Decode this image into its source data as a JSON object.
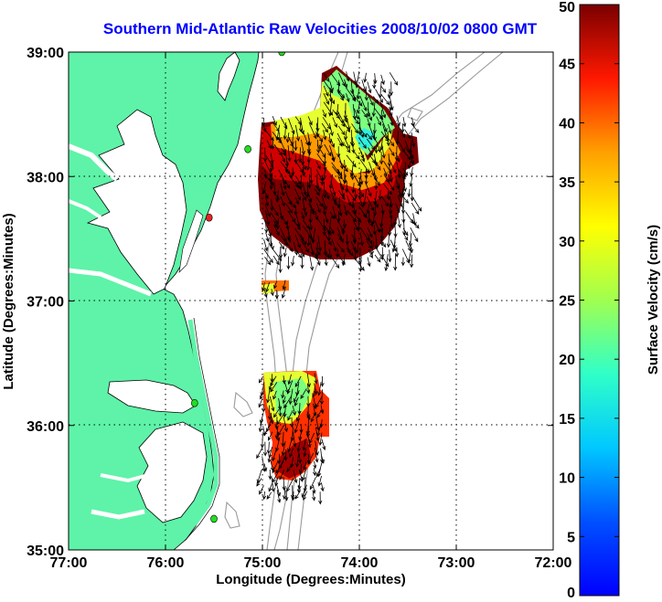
{
  "title": "Southern Mid-Atlantic Raw Velocities 2008/10/02 0800 GMT",
  "map": {
    "xlabel": "Longitude (Degrees:Minutes)",
    "ylabel": "Latitude (Degrees:Minutes)",
    "x_ticks": [
      {
        "value": -77,
        "label": "77:00"
      },
      {
        "value": -76,
        "label": "76:00"
      },
      {
        "value": -75,
        "label": "75:00"
      },
      {
        "value": -74,
        "label": "74:00"
      },
      {
        "value": -73,
        "label": "73:00"
      },
      {
        "value": -72,
        "label": "72:00"
      }
    ],
    "y_ticks": [
      {
        "value": 39,
        "label": "39:00"
      },
      {
        "value": 38,
        "label": "38:00"
      },
      {
        "value": 37,
        "label": "37:00"
      },
      {
        "value": 36,
        "label": "36:00"
      },
      {
        "value": 35,
        "label": "35:00"
      }
    ],
    "xlim": [
      -77,
      -72
    ],
    "ylim": [
      35,
      39
    ],
    "land_color": "#5ef3a8",
    "water_color": "#ffffff",
    "bathymetry_color": "#9a9a9a",
    "grid": "dotted",
    "stations": [
      {
        "lon": -74.8,
        "lat": 39.0,
        "color": "#22dd22"
      },
      {
        "lon": -75.15,
        "lat": 38.22,
        "color": "#22dd22"
      },
      {
        "lon": -75.55,
        "lat": 37.67,
        "color": "#ee2222"
      },
      {
        "lon": -75.7,
        "lat": 36.18,
        "color": "#22dd22"
      },
      {
        "lon": -75.5,
        "lat": 35.25,
        "color": "#22dd22"
      }
    ]
  },
  "colorbar": {
    "label": "Surface Velocity (cm/s)",
    "min": 0,
    "max": 50,
    "ticks": [
      {
        "value": 0,
        "label": "0"
      },
      {
        "value": 5,
        "label": "5"
      },
      {
        "value": 10,
        "label": "10"
      },
      {
        "value": 15,
        "label": "15"
      },
      {
        "value": 20,
        "label": "20"
      },
      {
        "value": 25,
        "label": "25"
      },
      {
        "value": 30,
        "label": "30"
      },
      {
        "value": 35,
        "label": "35"
      },
      {
        "value": 40,
        "label": "40"
      },
      {
        "value": 45,
        "label": "45"
      },
      {
        "value": 50,
        "label": "50"
      }
    ]
  }
}
